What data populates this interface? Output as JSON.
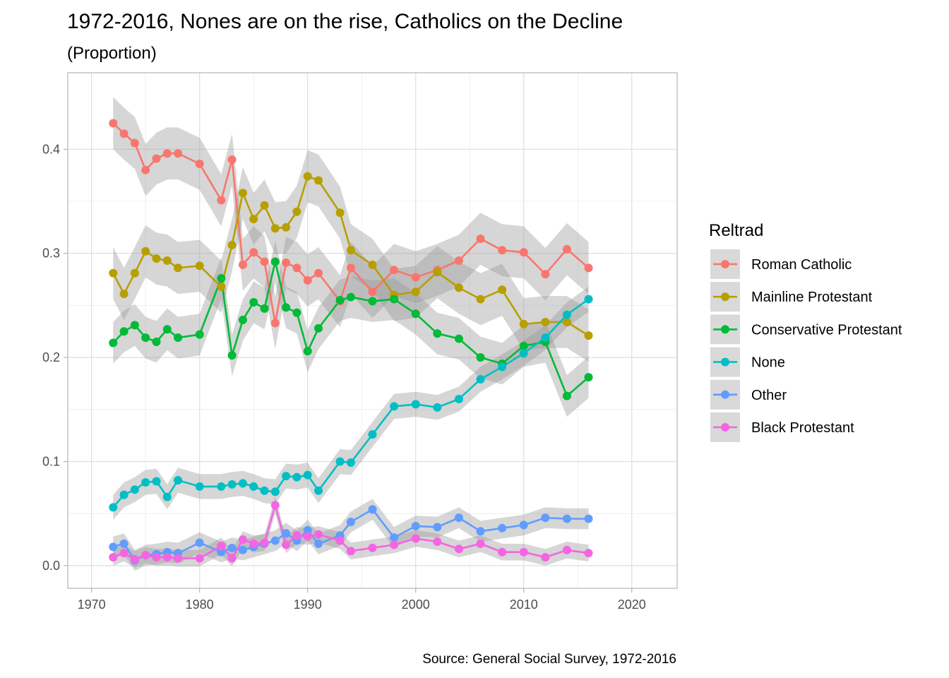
{
  "chart_data": {
    "type": "line",
    "title": "1972-2016, Nones are on the rise, Catholics on the Decline",
    "subtitle": "(Proportion)",
    "caption": "Source: General Social Survey, 1972-2016",
    "xlabel": "",
    "ylabel": "",
    "xlim": [
      1967.8,
      2024.2
    ],
    "ylim": [
      -0.0218,
      0.4735
    ],
    "x_ticks": [
      1970,
      1980,
      1990,
      2000,
      2010,
      2020
    ],
    "y_ticks": [
      0.0,
      0.1,
      0.2,
      0.3,
      0.4
    ],
    "x_tick_labels": [
      "1970",
      "1980",
      "1990",
      "2000",
      "2010",
      "2020"
    ],
    "y_tick_labels": [
      "0.0",
      "0.1",
      "0.2",
      "0.3",
      "0.4"
    ],
    "grid": true,
    "confidence_band": true,
    "legend": {
      "title": "Reltrad",
      "position": "right"
    },
    "x": [
      1972,
      1973,
      1974,
      1975,
      1976,
      1977,
      1978,
      1980,
      1982,
      1983,
      1984,
      1985,
      1986,
      1987,
      1988,
      1989,
      1990,
      1991,
      1993,
      1994,
      1996,
      1998,
      2000,
      2002,
      2004,
      2006,
      2008,
      2010,
      2012,
      2014,
      2016
    ],
    "series": [
      {
        "name": "Roman Catholic",
        "color": "#F8766D",
        "band_width": 0.025,
        "values": [
          0.425,
          0.415,
          0.406,
          0.38,
          0.391,
          0.396,
          0.396,
          0.386,
          0.351,
          0.39,
          0.289,
          0.301,
          0.292,
          0.233,
          0.291,
          0.286,
          0.274,
          0.281,
          0.254,
          0.286,
          0.263,
          0.284,
          0.277,
          0.284,
          0.293,
          0.314,
          0.303,
          0.301,
          0.28,
          0.304,
          0.286
        ]
      },
      {
        "name": "Mainline Protestant",
        "color": "#B79F00",
        "band_width": 0.025,
        "values": [
          0.281,
          0.261,
          0.281,
          0.302,
          0.295,
          0.293,
          0.286,
          0.288,
          0.268,
          0.308,
          0.358,
          0.333,
          0.346,
          0.324,
          0.325,
          0.34,
          0.374,
          0.37,
          0.339,
          0.303,
          0.289,
          0.26,
          0.263,
          0.282,
          0.267,
          0.256,
          0.265,
          0.232,
          0.234,
          0.234,
          0.221
        ]
      },
      {
        "name": "Conservative Protestant",
        "color": "#00BA38",
        "band_width": 0.02,
        "values": [
          0.214,
          0.225,
          0.231,
          0.219,
          0.215,
          0.227,
          0.219,
          0.222,
          0.276,
          0.202,
          0.236,
          0.253,
          0.247,
          0.292,
          0.248,
          0.243,
          0.206,
          0.228,
          0.255,
          0.258,
          0.254,
          0.256,
          0.242,
          0.223,
          0.218,
          0.2,
          0.194,
          0.211,
          0.215,
          0.163,
          0.181
        ]
      },
      {
        "name": "None",
        "color": "#00BFC4",
        "band_width": 0.012,
        "values": [
          0.056,
          0.068,
          0.073,
          0.08,
          0.081,
          0.066,
          0.082,
          0.076,
          0.076,
          0.078,
          0.079,
          0.076,
          0.072,
          0.071,
          0.086,
          0.085,
          0.087,
          0.072,
          0.1,
          0.099,
          0.126,
          0.153,
          0.155,
          0.152,
          0.16,
          0.179,
          0.191,
          0.204,
          0.219,
          0.241,
          0.256
        ]
      },
      {
        "name": "Other",
        "color": "#619CFF",
        "band_width": 0.01,
        "values": [
          0.018,
          0.021,
          0.005,
          0.01,
          0.011,
          0.013,
          0.012,
          0.022,
          0.013,
          0.017,
          0.015,
          0.018,
          0.021,
          0.024,
          0.031,
          0.024,
          0.034,
          0.021,
          0.029,
          0.042,
          0.054,
          0.027,
          0.038,
          0.037,
          0.046,
          0.033,
          0.036,
          0.039,
          0.046,
          0.045,
          0.045
        ]
      },
      {
        "name": "Black Protestant",
        "color": "#F564E3",
        "band_width": 0.008,
        "values": [
          0.008,
          0.012,
          0.006,
          0.01,
          0.008,
          0.008,
          0.007,
          0.007,
          0.019,
          0.007,
          0.025,
          0.021,
          0.022,
          0.058,
          0.02,
          0.029,
          0.028,
          0.03,
          0.024,
          0.014,
          0.017,
          0.02,
          0.026,
          0.023,
          0.016,
          0.021,
          0.013,
          0.013,
          0.008,
          0.015,
          0.012
        ]
      }
    ]
  }
}
